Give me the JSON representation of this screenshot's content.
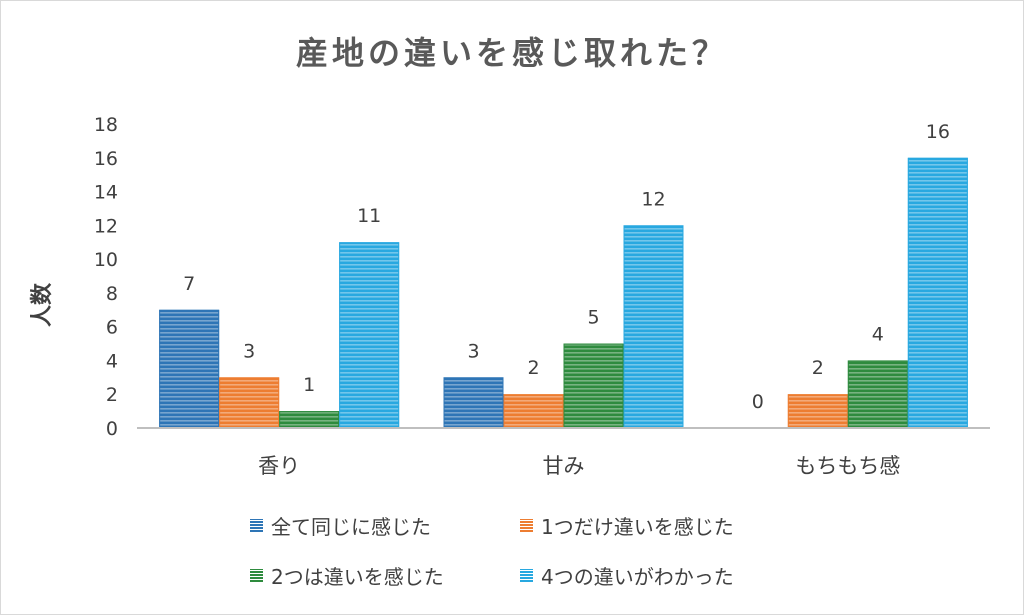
{
  "chart_data": {
    "type": "bar",
    "title": "産地の違いを感じ取れた？",
    "xlabel": "",
    "ylabel": "人数",
    "ylim": [
      0,
      18
    ],
    "yticks": [
      0,
      2,
      4,
      6,
      8,
      10,
      12,
      14,
      16,
      18
    ],
    "categories": [
      "香り",
      "甘み",
      "もちもち感"
    ],
    "series": [
      {
        "name": "全て同じに感じた",
        "color": "#2e75b6",
        "values": [
          7,
          3,
          0
        ]
      },
      {
        "name": "1つだけ違いを感じた",
        "color": "#ed7d31",
        "values": [
          3,
          2,
          2
        ]
      },
      {
        "name": "2つは違いを感じた",
        "color": "#2e8b3e",
        "values": [
          1,
          5,
          4
        ]
      },
      {
        "name": "4つの違いがわかった",
        "color": "#28a8e0",
        "values": [
          11,
          12,
          16
        ]
      }
    ],
    "legend_position": "bottom"
  }
}
